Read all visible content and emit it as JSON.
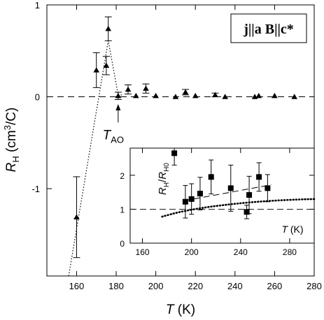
{
  "chart_data": [
    {
      "type": "scatter",
      "title": "",
      "legend_box": {
        "parts": [
          "j",
          "||",
          "a",
          " B",
          "||",
          "c*"
        ]
      },
      "xlabel": {
        "main": "T",
        "unit": " (K)"
      },
      "ylabel": {
        "main": "R",
        "sub": "H",
        "unit": " (cm",
        "sup": "3",
        "unit_end": "/C)"
      },
      "xlim": [
        145,
        280
      ],
      "ylim": [
        -1.95,
        1.0
      ],
      "xticks": [
        160,
        180,
        200,
        220,
        240,
        260,
        280
      ],
      "xtick_labels": [
        "160",
        "180",
        "200",
        "220",
        "240",
        "260",
        "280"
      ],
      "yticks": [
        1,
        0,
        -1
      ],
      "ytick_labels": [
        "1",
        "0",
        "-1"
      ],
      "reference_line": {
        "y": 0,
        "style": "dashed"
      },
      "annotation": {
        "label_main": "T",
        "label_sub": "AO",
        "x": 181,
        "arrow_from_y": -0.28,
        "arrow_to_y": -0.08
      },
      "guide_line": {
        "style": "dotted",
        "points": [
          [
            156,
            -1.95
          ],
          [
            176,
            0.61
          ],
          [
            181,
            0.02
          ],
          [
            183,
            0.02
          ]
        ]
      },
      "series": [
        {
          "marker": "triangle",
          "points": [
            {
              "x": 160,
              "y": -1.31,
              "err": 0.44
            },
            {
              "x": 170,
              "y": 0.29,
              "err": 0.19
            },
            {
              "x": 175,
              "y": 0.34,
              "err": 0.1
            },
            {
              "x": 176,
              "y": 0.74,
              "err": 0.13
            },
            {
              "x": 181,
              "y": 0.01,
              "err": 0.04
            },
            {
              "x": 186,
              "y": 0.08,
              "err": 0.05
            },
            {
              "x": 190,
              "y": 0.01,
              "err": 0.0
            },
            {
              "x": 195,
              "y": 0.09,
              "err": 0.05
            },
            {
              "x": 200,
              "y": 0.01,
              "err": 0.0
            },
            {
              "x": 210,
              "y": 0.0,
              "err": 0.0
            },
            {
              "x": 215,
              "y": 0.05,
              "err": 0.03
            },
            {
              "x": 220,
              "y": 0.01,
              "err": 0.0
            },
            {
              "x": 230,
              "y": 0.02,
              "err": 0.02
            },
            {
              "x": 235,
              "y": 0.0,
              "err": 0.0
            },
            {
              "x": 250,
              "y": 0.0,
              "err": 0.0
            },
            {
              "x": 252,
              "y": 0.01,
              "err": 0.0
            },
            {
              "x": 260,
              "y": 0.01,
              "err": 0.0
            },
            {
              "x": 270,
              "y": 0.0,
              "err": 0.0
            }
          ]
        }
      ]
    },
    {
      "type": "scatter",
      "title": "",
      "xlabel": {
        "main": "T",
        "unit": " (K)"
      },
      "ylabel": {
        "main": "R",
        "sub": "H",
        "slash": "/",
        "main2": "R",
        "sub2": "H0"
      },
      "xlim": [
        150,
        300
      ],
      "ylim": [
        0,
        2.8
      ],
      "xticks": [
        160,
        200,
        240,
        280
      ],
      "xtick_labels": [
        "160",
        "200",
        "240",
        "280"
      ],
      "yticks": [
        0,
        1,
        2
      ],
      "ytick_labels": [
        "0",
        "1",
        "2"
      ],
      "reference_line": {
        "y": 1.0,
        "style": "dashed"
      },
      "fit_line": {
        "style": "dashed",
        "points": [
          [
            194,
            1.25
          ],
          [
            265,
            1.72
          ]
        ]
      },
      "guide_curve": {
        "style": "dotted",
        "points": [
          [
            176,
            0.78
          ],
          [
            190,
            0.92
          ],
          [
            210,
            1.05
          ],
          [
            230,
            1.14
          ],
          [
            250,
            1.21
          ],
          [
            270,
            1.26
          ],
          [
            290,
            1.29
          ],
          [
            300,
            1.3
          ]
        ]
      },
      "series": [
        {
          "marker": "square",
          "points": [
            {
              "x": 186,
              "y": 2.65,
              "err": 0.35
            },
            {
              "x": 195,
              "y": 1.22,
              "err": 0.48
            },
            {
              "x": 200,
              "y": 1.3,
              "err": 0.45
            },
            {
              "x": 207,
              "y": 1.46,
              "err": 0.48
            },
            {
              "x": 216,
              "y": 1.95,
              "err": 0.5
            },
            {
              "x": 232,
              "y": 1.62,
              "err": 0.68
            },
            {
              "x": 245,
              "y": 0.92,
              "err": 0.2
            },
            {
              "x": 247,
              "y": 1.42,
              "err": 0.55
            },
            {
              "x": 255,
              "y": 1.95,
              "err": 0.42
            },
            {
              "x": 262,
              "y": 1.62,
              "err": 0.4
            }
          ]
        }
      ]
    }
  ]
}
